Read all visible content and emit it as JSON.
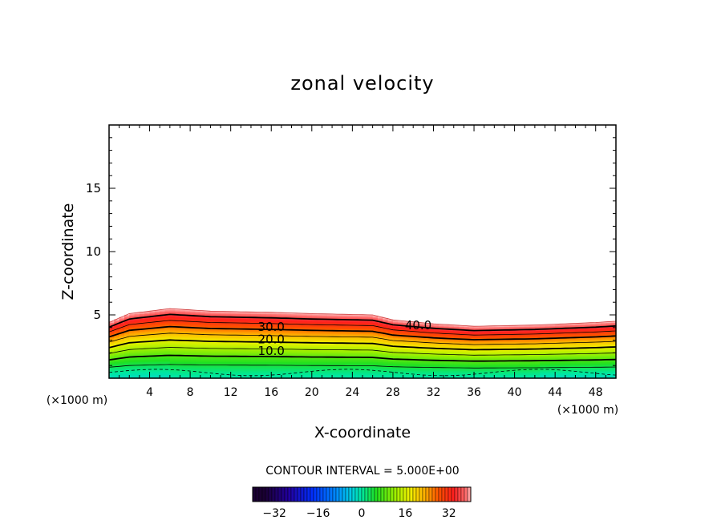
{
  "chart_data": {
    "type": "contour",
    "title": "zonal velocity",
    "xlabel": "X-coordinate",
    "ylabel": "Z-coordinate",
    "x_unit_left": "(×1000 m)",
    "x_unit_right": "(×1000 m)",
    "xlim": [
      0,
      50
    ],
    "ylim": [
      0,
      20
    ],
    "x_ticks": [
      4,
      8,
      12,
      16,
      20,
      24,
      28,
      32,
      36,
      40,
      44,
      48
    ],
    "y_ticks": [
      5,
      10,
      15
    ],
    "contour_interval_label": "CONTOUR INTERVAL = 5.000E+00",
    "contour_labels": [
      {
        "text": "30.0",
        "x": 16.0,
        "z": 4.0
      },
      {
        "text": "20.0",
        "x": 16.0,
        "z": 3.0
      },
      {
        "text": "10.0",
        "x": 16.0,
        "z": 2.1
      },
      {
        "text": "40.0",
        "x": 30.5,
        "z": 4.1
      }
    ],
    "top_boundary": [
      [
        0,
        4.4
      ],
      [
        2,
        5.1
      ],
      [
        4,
        5.3
      ],
      [
        6,
        5.5
      ],
      [
        10,
        5.3
      ],
      [
        16,
        5.2
      ],
      [
        20,
        5.1
      ],
      [
        26,
        5.0
      ],
      [
        28,
        4.6
      ],
      [
        32,
        4.3
      ],
      [
        36,
        4.1
      ],
      [
        42,
        4.2
      ],
      [
        48,
        4.4
      ],
      [
        50,
        4.5
      ]
    ],
    "colorbar": {
      "ticks": [
        -32,
        -16,
        0,
        16,
        32
      ],
      "range": [
        -40,
        40
      ],
      "colors": [
        "#1a0033",
        "#2200a0",
        "#0030ff",
        "#0090ff",
        "#00d0e0",
        "#00f0a0",
        "#20e020",
        "#a0f000",
        "#f0f000",
        "#ffb000",
        "#ff5000",
        "#ff2020",
        "#ffb0b0"
      ]
    }
  }
}
